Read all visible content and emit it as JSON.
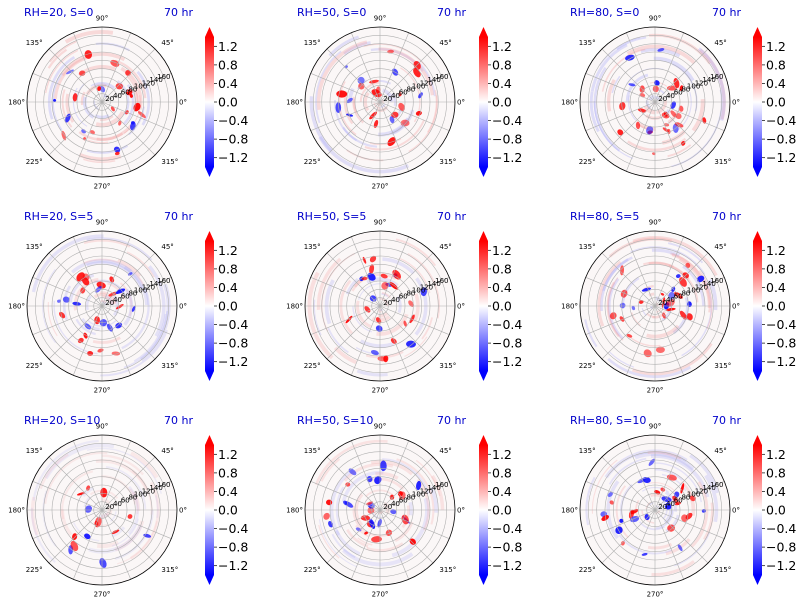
{
  "chart_data": {
    "type": "heatmap",
    "layout": {
      "rows": 3,
      "cols": 3
    },
    "projection": "polar",
    "time_label": "70 hr",
    "angle_ticks": [
      "0°",
      "45°",
      "90°",
      "135°",
      "180°",
      "225°",
      "270°",
      "315°"
    ],
    "radial_ticks": [
      "20",
      "40",
      "60",
      "80",
      "100",
      "120",
      "140",
      "160"
    ],
    "radial_range": [
      0,
      180
    ],
    "colorbar": {
      "colormap": "bwr",
      "range": [
        -1.4,
        1.4
      ],
      "extend": "both",
      "ticks": [
        "1.2",
        "0.8",
        "0.4",
        "0.0",
        "−0.4",
        "−0.8",
        "−1.2"
      ],
      "colors": {
        "low": "#0000ff",
        "mid": "#ffffff",
        "high": "#ff0000"
      }
    },
    "panels": [
      {
        "title": "RH=20, S=0",
        "time": "70 hr"
      },
      {
        "title": "RH=50, S=0",
        "time": "70 hr"
      },
      {
        "title": "RH=80, S=0",
        "time": "70 hr"
      },
      {
        "title": "RH=20, S=5",
        "time": "70 hr"
      },
      {
        "title": "RH=50, S=5",
        "time": "70 hr"
      },
      {
        "title": "RH=80, S=5",
        "time": "70 hr"
      },
      {
        "title": "RH=20, S=10",
        "time": "70 hr"
      },
      {
        "title": "RH=50, S=10",
        "time": "70 hr"
      },
      {
        "title": "RH=80, S=10",
        "time": "70 hr"
      }
    ]
  }
}
